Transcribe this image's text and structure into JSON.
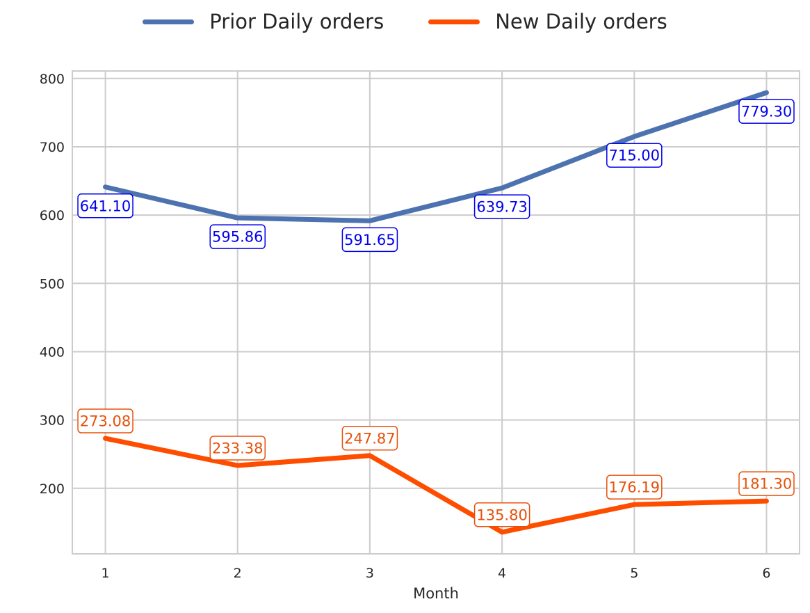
{
  "chart_data": {
    "type": "line",
    "x": [
      1,
      2,
      3,
      4,
      5,
      6
    ],
    "xlabel": "Month",
    "ylabel": "",
    "xlim": [
      0.75,
      6.25
    ],
    "ylim": [
      104,
      811
    ],
    "yticks": [
      200,
      300,
      400,
      500,
      600,
      700,
      800
    ],
    "grid": true,
    "legend_position": "top-center",
    "series": [
      {
        "name": "Prior Daily orders",
        "color": "#4c72b0",
        "label_color": "#0000ee",
        "label_position": "below",
        "values": [
          641.1,
          595.86,
          591.65,
          639.73,
          715.0,
          779.3
        ],
        "labels": [
          "641.10",
          "595.86",
          "591.65",
          "639.73",
          "715.00",
          "779.30"
        ]
      },
      {
        "name": "New Daily orders",
        "color": "#ff4d00",
        "label_color": "#e8500a",
        "label_position": "above",
        "values": [
          273.08,
          233.38,
          247.87,
          135.8,
          176.19,
          181.3
        ],
        "labels": [
          "273.08",
          "233.38",
          "247.87",
          "135.80",
          "176.19",
          "181.30"
        ]
      }
    ]
  }
}
